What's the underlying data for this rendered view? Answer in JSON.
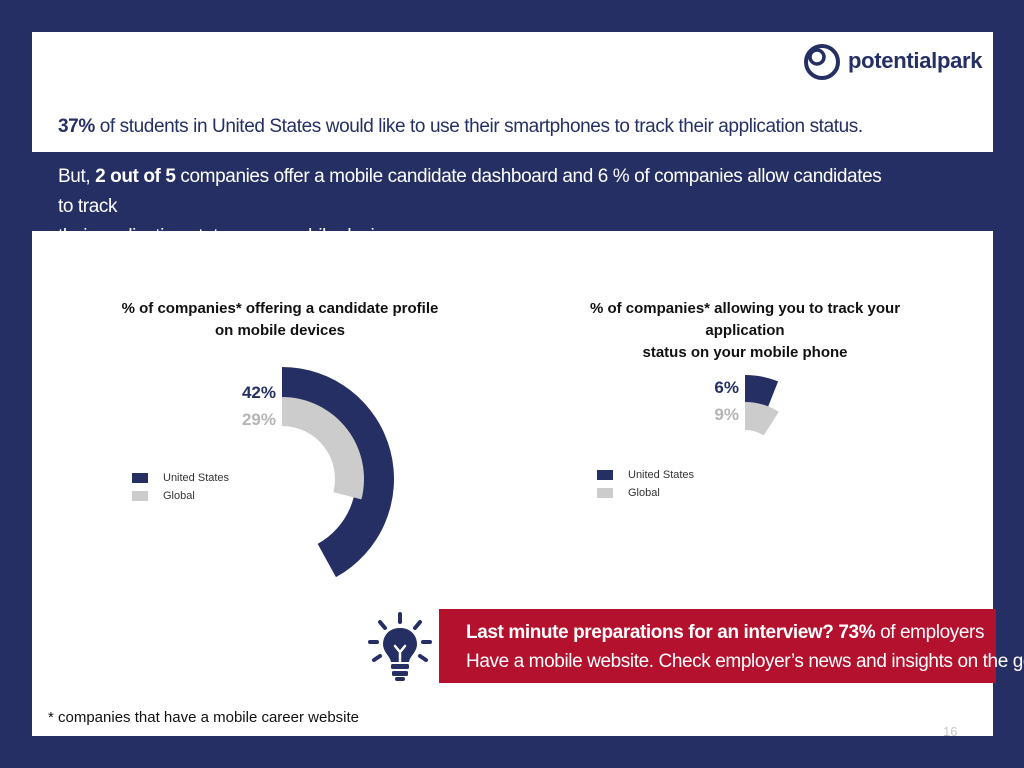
{
  "brand": {
    "name": "potentialpark"
  },
  "stat_line": {
    "highlight": "37%",
    "rest": " of students in United States would like to use their smartphones to track their application status."
  },
  "intro": {
    "prefix": "But, ",
    "highlight": "2 out of 5",
    "line1_rest": " companies offer a mobile candidate dashboard and 6 % of companies allow candidates to track",
    "line2": "their application status on a mobile device."
  },
  "colors": {
    "us": "#252f63",
    "global": "#cccccc",
    "callout": "#b3112e",
    "background": "#252f63"
  },
  "chart_data": [
    {
      "type": "pie",
      "title": "% of companies* offering a candidate profile on mobile devices",
      "title_lines": [
        "% of companies* offering a candidate profile",
        "on mobile devices"
      ],
      "series": [
        {
          "name": "United States",
          "value": 42,
          "label": "42%"
        },
        {
          "name": "Global",
          "value": 29,
          "label": "29%"
        }
      ]
    },
    {
      "type": "pie",
      "title": "% of companies* allowing you to track your application status on your mobile phone",
      "title_lines": [
        "% of companies* allowing you to track your application",
        "status on your mobile phone"
      ],
      "series": [
        {
          "name": "United States",
          "value": 6,
          "label": "6%"
        },
        {
          "name": "Global",
          "value": 9,
          "label": "9%"
        }
      ]
    }
  ],
  "legend": {
    "us": "United States",
    "global": "Global"
  },
  "callout": {
    "line1_bold": "Last minute preparations for an interview? 73%",
    "line1_rest": " of employers",
    "line2": "Have a mobile website. Check employer’s news and insights on the go!",
    "icon": "lightbulb-icon"
  },
  "footnote": "* companies that have a mobile career website",
  "page_number": "16"
}
